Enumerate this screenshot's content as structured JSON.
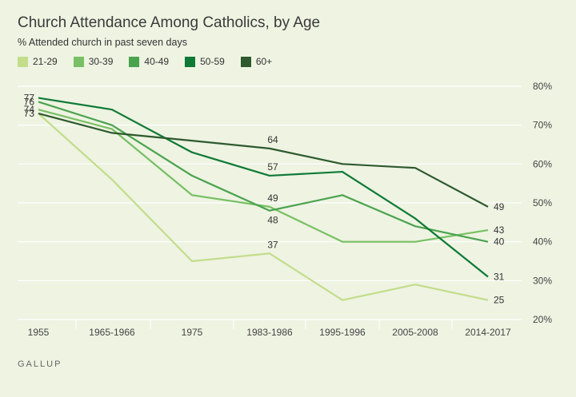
{
  "header": {
    "title": "Church Attendance Among Catholics, by Age",
    "subtitle": "% Attended church in past seven days"
  },
  "brand": "GALLUP",
  "colors": {
    "21-29": "#c3dd8a",
    "30-39": "#78c063",
    "40-49": "#4aa34d",
    "50-59": "#0e7a35",
    "60+": "#2e5a2e"
  },
  "chart_data": {
    "type": "line",
    "title": "Church Attendance Among Catholics, by Age",
    "subtitle": "% Attended church in past seven days",
    "categories": [
      "1955",
      "1965-1966",
      "1975",
      "1983-1986",
      "1995-1996",
      "2005-2008",
      "2014-2017"
    ],
    "ylim": [
      20,
      80
    ],
    "yticks": [
      20,
      30,
      40,
      50,
      60,
      70,
      80
    ],
    "ytick_labels": [
      "20%",
      "30%",
      "40%",
      "50%",
      "60%",
      "70%",
      "80%"
    ],
    "y_axis_position": "right",
    "grid": true,
    "legend_position": "top-left",
    "series": [
      {
        "name": "21-29",
        "values": [
          73,
          56,
          35,
          37,
          25,
          29,
          25
        ]
      },
      {
        "name": "30-39",
        "values": [
          74,
          69,
          52,
          49,
          40,
          40,
          43
        ]
      },
      {
        "name": "40-49",
        "values": [
          76,
          70,
          57,
          48,
          52,
          44,
          40
        ]
      },
      {
        "name": "50-59",
        "values": [
          77,
          74,
          63,
          57,
          58,
          46,
          31
        ]
      },
      {
        "name": "60+",
        "values": [
          73,
          68,
          66,
          64,
          60,
          59,
          49
        ]
      }
    ],
    "data_labels": [
      {
        "series": "50-59",
        "index": 0,
        "text": "77",
        "pos": "left"
      },
      {
        "series": "40-49",
        "index": 0,
        "text": "76",
        "pos": "left"
      },
      {
        "series": "30-39",
        "index": 0,
        "text": "74",
        "pos": "left"
      },
      {
        "series": "60+",
        "index": 0,
        "text": "73",
        "pos": "left"
      },
      {
        "series": "60+",
        "index": 3,
        "text": "64",
        "pos": "above"
      },
      {
        "series": "50-59",
        "index": 3,
        "text": "57",
        "pos": "above"
      },
      {
        "series": "30-39",
        "index": 3,
        "text": "49",
        "pos": "above"
      },
      {
        "series": "40-49",
        "index": 3,
        "text": "48",
        "pos": "below"
      },
      {
        "series": "21-29",
        "index": 3,
        "text": "37",
        "pos": "above"
      },
      {
        "series": "60+",
        "index": 6,
        "text": "49",
        "pos": "right"
      },
      {
        "series": "30-39",
        "index": 6,
        "text": "43",
        "pos": "right"
      },
      {
        "series": "40-49",
        "index": 6,
        "text": "40",
        "pos": "right"
      },
      {
        "series": "50-59",
        "index": 6,
        "text": "31",
        "pos": "right"
      },
      {
        "series": "21-29",
        "index": 6,
        "text": "25",
        "pos": "right"
      }
    ]
  }
}
